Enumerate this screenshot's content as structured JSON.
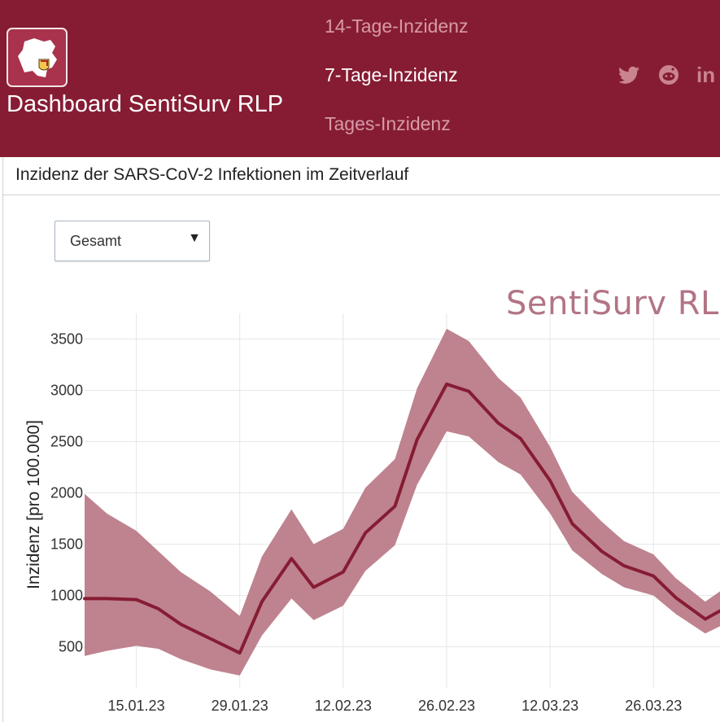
{
  "header": {
    "brand": "Dashboard SentiSurv RLP",
    "logo_icon": "rlp-map-logo-icon",
    "nav": [
      {
        "label": "14-Tage-Inzidenz",
        "active": false
      },
      {
        "label": "7-Tage-Inzidenz",
        "active": true
      },
      {
        "label": "Tages-Inzidenz",
        "active": false
      }
    ],
    "social": [
      "twitter-icon",
      "reddit-icon",
      "linkedin-icon"
    ],
    "social_text": {
      "linkedin": "in"
    }
  },
  "panel": {
    "title": "Inzidenz der SARS-CoV-2 Infektionen im Zeitverlauf"
  },
  "filter": {
    "selected": "Gesamt",
    "caret": "▼"
  },
  "watermark": "SentiSurv RLP",
  "colors": {
    "brand": "#861c33",
    "line": "#861c33",
    "band": "#b97885",
    "grid": "#e6e6e6"
  },
  "chart_data": {
    "type": "line",
    "title": "",
    "xlabel": "",
    "ylabel": "Inzidenz [pro 100.000]",
    "x_ticks": [
      "15.01.23",
      "29.01.23",
      "12.02.23",
      "26.02.23",
      "12.03.23",
      "26.03.23"
    ],
    "x_tick_dates": [
      "2023-01-15",
      "2023-01-29",
      "2023-02-12",
      "2023-02-26",
      "2023-03-12",
      "2023-03-26"
    ],
    "y_ticks": [
      500,
      1000,
      1500,
      2000,
      2500,
      3000,
      3500
    ],
    "xlim": [
      "2023-01-08",
      "2023-04-04"
    ],
    "ylim": [
      100,
      3750
    ],
    "grid": true,
    "series": [
      {
        "kind": "estimate",
        "x": [
          "2023-01-08",
          "2023-01-11",
          "2023-01-15",
          "2023-01-18",
          "2023-01-21",
          "2023-01-25",
          "2023-01-29",
          "2023-02-01",
          "2023-02-05",
          "2023-02-08",
          "2023-02-12",
          "2023-02-15",
          "2023-02-19",
          "2023-02-22",
          "2023-02-26",
          "2023-03-01",
          "2023-03-05",
          "2023-03-08",
          "2023-03-12",
          "2023-03-15",
          "2023-03-19",
          "2023-03-22",
          "2023-03-26",
          "2023-03-29",
          "2023-04-02",
          "2023-04-04"
        ],
        "y": [
          970,
          970,
          960,
          870,
          720,
          580,
          440,
          940,
          1360,
          1080,
          1230,
          1610,
          1870,
          2520,
          3060,
          2990,
          2680,
          2530,
          2120,
          1700,
          1430,
          1290,
          1190,
          980,
          770,
          850
        ]
      },
      {
        "kind": "upper",
        "x": [
          "2023-01-08",
          "2023-01-11",
          "2023-01-15",
          "2023-01-18",
          "2023-01-21",
          "2023-01-25",
          "2023-01-29",
          "2023-02-01",
          "2023-02-05",
          "2023-02-08",
          "2023-02-12",
          "2023-02-15",
          "2023-02-19",
          "2023-02-22",
          "2023-02-26",
          "2023-03-01",
          "2023-03-05",
          "2023-03-08",
          "2023-03-12",
          "2023-03-15",
          "2023-03-19",
          "2023-03-22",
          "2023-03-26",
          "2023-03-29",
          "2023-04-02",
          "2023-04-04"
        ],
        "y": [
          1990,
          1800,
          1630,
          1430,
          1230,
          1040,
          800,
          1380,
          1840,
          1500,
          1650,
          2050,
          2330,
          3020,
          3600,
          3480,
          3120,
          2930,
          2450,
          2010,
          1720,
          1530,
          1400,
          1170,
          940,
          1040
        ]
      },
      {
        "kind": "lower",
        "x": [
          "2023-01-08",
          "2023-01-11",
          "2023-01-15",
          "2023-01-18",
          "2023-01-21",
          "2023-01-25",
          "2023-01-29",
          "2023-02-01",
          "2023-02-05",
          "2023-02-08",
          "2023-02-12",
          "2023-02-15",
          "2023-02-19",
          "2023-02-22",
          "2023-02-26",
          "2023-03-01",
          "2023-03-05",
          "2023-03-08",
          "2023-03-12",
          "2023-03-15",
          "2023-03-19",
          "2023-03-22",
          "2023-03-26",
          "2023-03-29",
          "2023-04-02",
          "2023-04-04"
        ],
        "y": [
          410,
          460,
          510,
          480,
          380,
          280,
          220,
          610,
          970,
          760,
          900,
          1240,
          1490,
          2080,
          2600,
          2550,
          2300,
          2180,
          1800,
          1440,
          1210,
          1080,
          1000,
          820,
          630,
          700
        ]
      }
    ]
  }
}
